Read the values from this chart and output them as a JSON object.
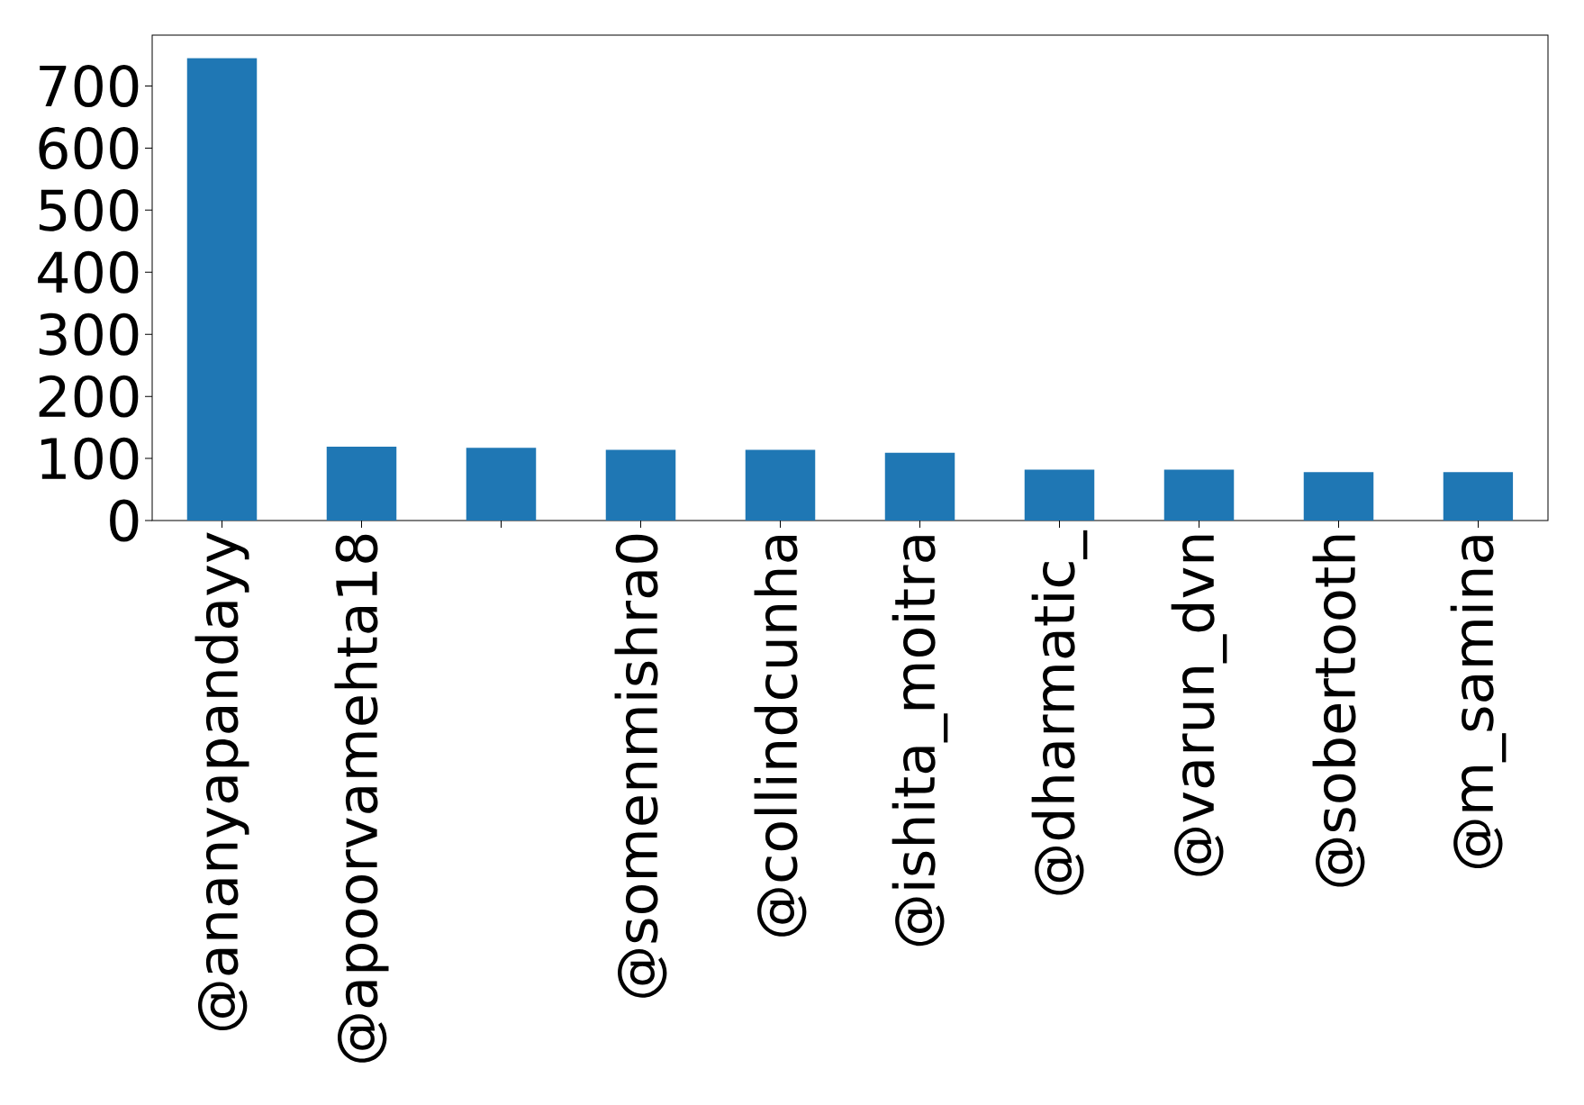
{
  "chart_data": {
    "type": "bar",
    "categories": [
      "@ananyapandayy",
      "@apoorvamehta18",
      null,
      "@somenmishra0",
      "@collindcunha",
      "@ishita_moitra",
      "@dharmatic_",
      "@varun_dvn",
      "@sobertooth",
      "@m_samina"
    ],
    "values": [
      745,
      119,
      117,
      114,
      114,
      109,
      82,
      82,
      78,
      78
    ],
    "color": "#1f77b4",
    "ylim": [
      0,
      782
    ],
    "yticks": [
      0,
      100,
      200,
      300,
      400,
      500,
      600,
      700
    ]
  }
}
